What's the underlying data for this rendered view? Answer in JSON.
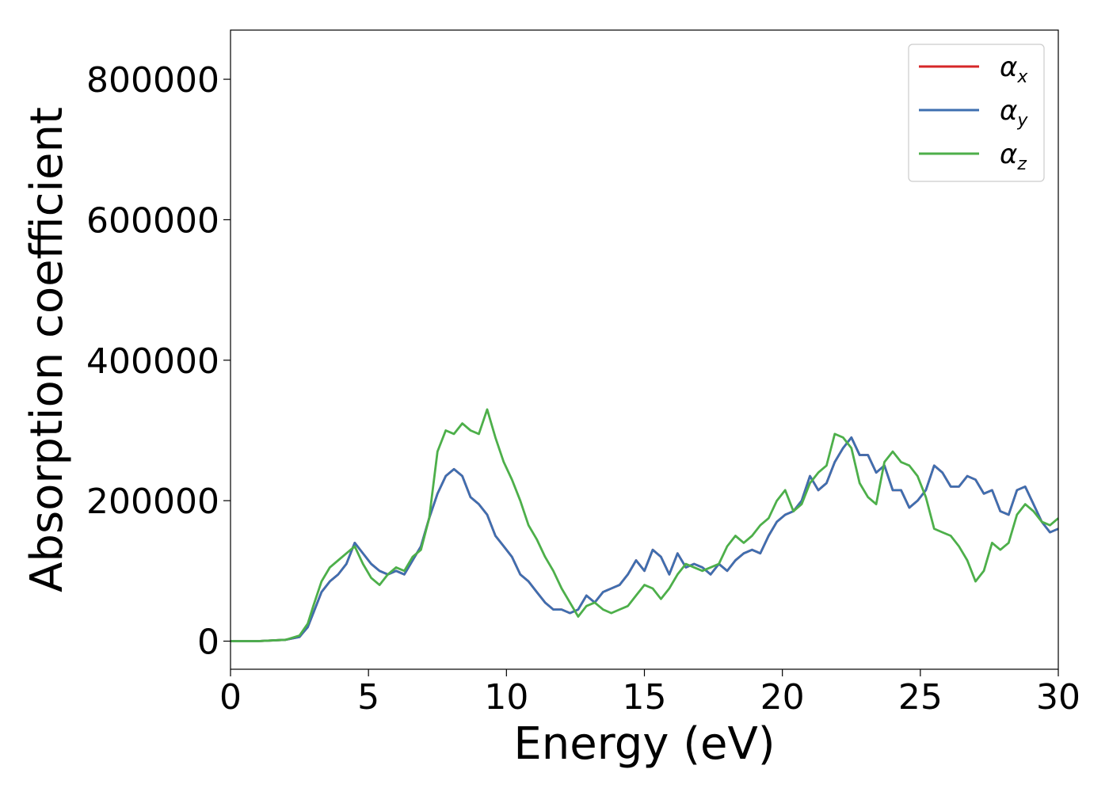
{
  "chart_data": {
    "type": "line",
    "xlabel": "Energy (eV)",
    "ylabel": "Absorption coefficient",
    "xlim": [
      0,
      30
    ],
    "ylim": [
      -40000,
      870000
    ],
    "xticks": [
      0,
      5,
      10,
      15,
      20,
      25,
      30
    ],
    "yticks": [
      0,
      200000,
      400000,
      600000,
      800000
    ],
    "xtick_labels": [
      "0",
      "5",
      "10",
      "15",
      "20",
      "25",
      "30"
    ],
    "ytick_labels": [
      "0",
      "200000",
      "400000",
      "600000",
      "800000"
    ],
    "grid": false,
    "legend_position": "top-right",
    "series": [
      {
        "name": "α",
        "subscript": "x",
        "color": "#d62728",
        "x": [
          0,
          1,
          2,
          2.5,
          2.8,
          3,
          3.3,
          3.6,
          3.9,
          4.2,
          4.5,
          4.8,
          5.1,
          5.4,
          5.7,
          6,
          6.3,
          6.6,
          6.9,
          7.2,
          7.5,
          7.8,
          8.1,
          8.4,
          8.7,
          9,
          9.3,
          9.6,
          9.9,
          10.2,
          10.5,
          10.8,
          11.1,
          11.4,
          11.7,
          12,
          12.3,
          12.6,
          12.9,
          13.2,
          13.5,
          13.8,
          14.1,
          14.4,
          14.7,
          15,
          15.3,
          15.6,
          15.9,
          16.2,
          16.5,
          16.8,
          17.1,
          17.4,
          17.7,
          18,
          18.3,
          18.6,
          18.9,
          19.2,
          19.5,
          19.8,
          20.1,
          20.4,
          20.7,
          21,
          21.3,
          21.6,
          21.9,
          22.2,
          22.5,
          22.8,
          23.1,
          23.4,
          23.7,
          24,
          24.3,
          24.6,
          24.9,
          25.2,
          25.5,
          25.8,
          26.1,
          26.4,
          26.7,
          27,
          27.3,
          27.6,
          27.9,
          28.2,
          28.5,
          28.8,
          29.1,
          29.4,
          29.7,
          30
        ],
        "values": [
          0,
          0,
          2000,
          6000,
          20000,
          40000,
          70000,
          85000,
          95000,
          110000,
          140000,
          125000,
          110000,
          100000,
          95000,
          100000,
          95000,
          115000,
          135000,
          175000,
          210000,
          235000,
          245000,
          235000,
          205000,
          195000,
          180000,
          150000,
          135000,
          120000,
          95000,
          85000,
          70000,
          55000,
          45000,
          45000,
          40000,
          45000,
          65000,
          55000,
          70000,
          75000,
          80000,
          95000,
          115000,
          100000,
          130000,
          120000,
          95000,
          125000,
          105000,
          110000,
          105000,
          95000,
          110000,
          100000,
          115000,
          125000,
          130000,
          125000,
          150000,
          170000,
          180000,
          185000,
          200000,
          235000,
          215000,
          225000,
          255000,
          275000,
          290000,
          265000,
          265000,
          240000,
          250000,
          215000,
          215000,
          190000,
          200000,
          215000,
          250000,
          240000,
          220000,
          220000,
          235000,
          230000,
          210000,
          215000,
          185000,
          180000,
          215000,
          220000,
          195000,
          170000,
          155000,
          160000
        ]
      },
      {
        "name": "α",
        "subscript": "y",
        "color": "#3e6fb0",
        "x": [
          0,
          1,
          2,
          2.5,
          2.8,
          3,
          3.3,
          3.6,
          3.9,
          4.2,
          4.5,
          4.8,
          5.1,
          5.4,
          5.7,
          6,
          6.3,
          6.6,
          6.9,
          7.2,
          7.5,
          7.8,
          8.1,
          8.4,
          8.7,
          9,
          9.3,
          9.6,
          9.9,
          10.2,
          10.5,
          10.8,
          11.1,
          11.4,
          11.7,
          12,
          12.3,
          12.6,
          12.9,
          13.2,
          13.5,
          13.8,
          14.1,
          14.4,
          14.7,
          15,
          15.3,
          15.6,
          15.9,
          16.2,
          16.5,
          16.8,
          17.1,
          17.4,
          17.7,
          18,
          18.3,
          18.6,
          18.9,
          19.2,
          19.5,
          19.8,
          20.1,
          20.4,
          20.7,
          21,
          21.3,
          21.6,
          21.9,
          22.2,
          22.5,
          22.8,
          23.1,
          23.4,
          23.7,
          24,
          24.3,
          24.6,
          24.9,
          25.2,
          25.5,
          25.8,
          26.1,
          26.4,
          26.7,
          27,
          27.3,
          27.6,
          27.9,
          28.2,
          28.5,
          28.8,
          29.1,
          29.4,
          29.7,
          30
        ],
        "values": [
          0,
          0,
          2000,
          6000,
          20000,
          40000,
          70000,
          85000,
          95000,
          110000,
          140000,
          125000,
          110000,
          100000,
          95000,
          100000,
          95000,
          115000,
          135000,
          175000,
          210000,
          235000,
          245000,
          235000,
          205000,
          195000,
          180000,
          150000,
          135000,
          120000,
          95000,
          85000,
          70000,
          55000,
          45000,
          45000,
          40000,
          45000,
          65000,
          55000,
          70000,
          75000,
          80000,
          95000,
          115000,
          100000,
          130000,
          120000,
          95000,
          125000,
          105000,
          110000,
          105000,
          95000,
          110000,
          100000,
          115000,
          125000,
          130000,
          125000,
          150000,
          170000,
          180000,
          185000,
          200000,
          235000,
          215000,
          225000,
          255000,
          275000,
          290000,
          265000,
          265000,
          240000,
          250000,
          215000,
          215000,
          190000,
          200000,
          215000,
          250000,
          240000,
          220000,
          220000,
          235000,
          230000,
          210000,
          215000,
          185000,
          180000,
          215000,
          220000,
          195000,
          170000,
          155000,
          160000
        ]
      },
      {
        "name": "α",
        "subscript": "z",
        "color": "#4daf4a",
        "x": [
          0,
          1,
          2,
          2.5,
          2.8,
          3,
          3.3,
          3.6,
          3.9,
          4.2,
          4.5,
          4.8,
          5.1,
          5.4,
          5.7,
          6,
          6.3,
          6.6,
          6.9,
          7.2,
          7.5,
          7.8,
          8.1,
          8.4,
          8.7,
          9,
          9.3,
          9.6,
          9.9,
          10.2,
          10.5,
          10.8,
          11.1,
          11.4,
          11.7,
          12,
          12.3,
          12.6,
          12.9,
          13.2,
          13.5,
          13.8,
          14.1,
          14.4,
          14.7,
          15,
          15.3,
          15.6,
          15.9,
          16.2,
          16.5,
          16.8,
          17.1,
          17.4,
          17.7,
          18,
          18.3,
          18.6,
          18.9,
          19.2,
          19.5,
          19.8,
          20.1,
          20.4,
          20.7,
          21,
          21.3,
          21.6,
          21.9,
          22.2,
          22.5,
          22.8,
          23.1,
          23.4,
          23.7,
          24,
          24.3,
          24.6,
          24.9,
          25.2,
          25.5,
          25.8,
          26.1,
          26.4,
          26.7,
          27,
          27.3,
          27.6,
          27.9,
          28.2,
          28.5,
          28.8,
          29.1,
          29.4,
          29.7,
          30
        ],
        "values": [
          0,
          0,
          2000,
          8000,
          25000,
          50000,
          85000,
          105000,
          115000,
          125000,
          135000,
          110000,
          90000,
          80000,
          95000,
          105000,
          100000,
          120000,
          130000,
          175000,
          270000,
          300000,
          295000,
          310000,
          300000,
          295000,
          330000,
          290000,
          255000,
          230000,
          200000,
          165000,
          145000,
          120000,
          100000,
          75000,
          55000,
          35000,
          50000,
          55000,
          45000,
          40000,
          45000,
          50000,
          65000,
          80000,
          75000,
          60000,
          75000,
          95000,
          110000,
          105000,
          100000,
          105000,
          110000,
          135000,
          150000,
          140000,
          150000,
          165000,
          175000,
          200000,
          215000,
          185000,
          195000,
          225000,
          240000,
          250000,
          295000,
          290000,
          275000,
          225000,
          205000,
          195000,
          255000,
          270000,
          255000,
          250000,
          235000,
          205000,
          160000,
          155000,
          150000,
          135000,
          115000,
          85000,
          100000,
          140000,
          130000,
          140000,
          180000,
          195000,
          185000,
          170000,
          165000,
          175000
        ]
      }
    ]
  }
}
